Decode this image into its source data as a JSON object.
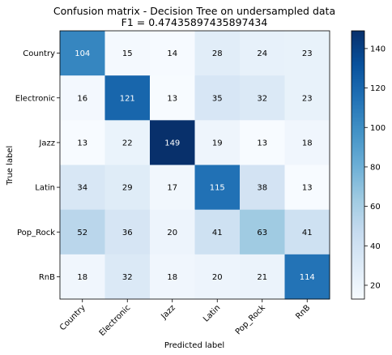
{
  "chart_data": {
    "type": "heatmap",
    "title": "Confusion matrix - Decision Tree on undersampled data",
    "subtitle": "F1 = 0.47435897435897434",
    "xlabel": "Predicted label",
    "ylabel": "True label",
    "x_categories": [
      "Country",
      "Electronic",
      "Jazz",
      "Latin",
      "Pop_Rock",
      "RnB"
    ],
    "y_categories": [
      "Country",
      "Electronic",
      "Jazz",
      "Latin",
      "Pop_Rock",
      "RnB"
    ],
    "values": [
      [
        104,
        15,
        14,
        28,
        24,
        23
      ],
      [
        16,
        121,
        13,
        35,
        32,
        23
      ],
      [
        13,
        22,
        149,
        19,
        13,
        18
      ],
      [
        34,
        29,
        17,
        115,
        38,
        13
      ],
      [
        52,
        36,
        20,
        41,
        63,
        41
      ],
      [
        18,
        32,
        18,
        20,
        21,
        114
      ]
    ],
    "colormap": "Blues",
    "colorbar": {
      "range": [
        13,
        149
      ],
      "ticks": [
        20,
        40,
        60,
        80,
        100,
        120,
        140
      ]
    }
  }
}
